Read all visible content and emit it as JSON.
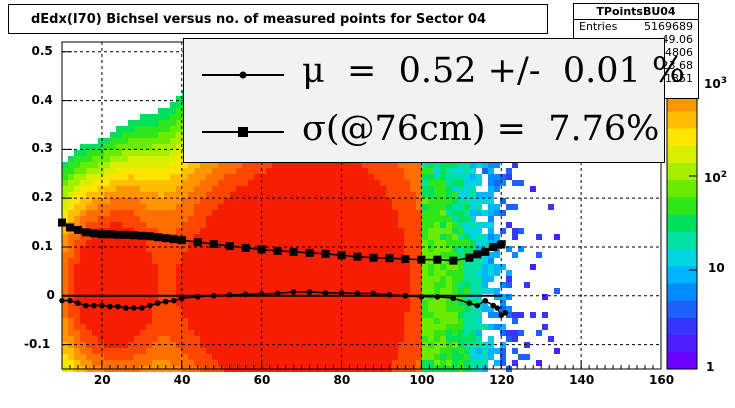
{
  "chart_data": {
    "type": "heatmap",
    "title": "dEdx(I70) Bichsel versus no. of measured points for Sector 04",
    "xlabel": "",
    "ylabel": "",
    "xlim": [
      10,
      160
    ],
    "ylim": [
      -0.15,
      0.52
    ],
    "x_ticks": [
      "20",
      "40",
      "60",
      "80",
      "100",
      "120",
      "140",
      "160"
    ],
    "y_ticks": [
      "-0.1",
      "0",
      "0.1",
      "0.2",
      "0.3",
      "0.4",
      "0.5"
    ],
    "z_scale": "log",
    "z_ticks": [
      "1",
      "10",
      "10^2",
      "10^3"
    ],
    "grid": true,
    "stats": {
      "name": "TPointsBU04",
      "entries_label": "Entries",
      "entries": "5169689",
      "mean_x": "49.06",
      "mean_y": "0.04806",
      "rms_x": "23.68",
      "rms_y": "0.1351"
    },
    "legend": [
      {
        "marker": "circle",
        "label": "μ  =  0.52 +/-  0.01 %"
      },
      {
        "marker": "square",
        "label": "σ(@76cm) =  7.76%"
      }
    ],
    "series": [
      {
        "marker": "circle",
        "x": [
          10,
          12,
          14,
          16,
          18,
          20,
          22,
          24,
          26,
          28,
          30,
          32,
          34,
          36,
          38,
          40,
          44,
          48,
          52,
          56,
          60,
          64,
          68,
          72,
          76,
          80,
          84,
          88,
          92,
          96,
          100,
          104,
          108,
          112,
          114,
          116,
          118,
          119,
          120,
          121
        ],
        "y": [
          -0.01,
          -0.01,
          -0.015,
          -0.02,
          -0.02,
          -0.02,
          -0.022,
          -0.022,
          -0.025,
          -0.025,
          -0.025,
          -0.02,
          -0.015,
          -0.012,
          -0.01,
          -0.005,
          -0.002,
          0.0,
          0.002,
          0.003,
          0.004,
          0.005,
          0.008,
          0.008,
          0.006,
          0.006,
          0.005,
          0.005,
          0.002,
          0.0,
          -0.002,
          -0.002,
          -0.005,
          -0.015,
          -0.02,
          -0.01,
          -0.02,
          -0.025,
          -0.04,
          -0.035
        ]
      },
      {
        "marker": "square",
        "x": [
          10,
          12,
          14,
          16,
          18,
          20,
          22,
          24,
          26,
          28,
          30,
          32,
          34,
          36,
          38,
          40,
          44,
          48,
          52,
          56,
          60,
          64,
          68,
          72,
          76,
          80,
          84,
          88,
          92,
          96,
          100,
          104,
          108,
          112,
          114,
          116,
          118,
          120
        ],
        "y": [
          0.15,
          0.14,
          0.135,
          0.13,
          0.128,
          0.126,
          0.126,
          0.125,
          0.125,
          0.124,
          0.123,
          0.122,
          0.12,
          0.118,
          0.116,
          0.114,
          0.11,
          0.106,
          0.102,
          0.098,
          0.095,
          0.092,
          0.09,
          0.088,
          0.086,
          0.083,
          0.08,
          0.078,
          0.077,
          0.075,
          0.074,
          0.074,
          0.072,
          0.078,
          0.085,
          0.09,
          0.1,
          0.105
        ]
      }
    ],
    "reference_line_y": 0.0
  }
}
